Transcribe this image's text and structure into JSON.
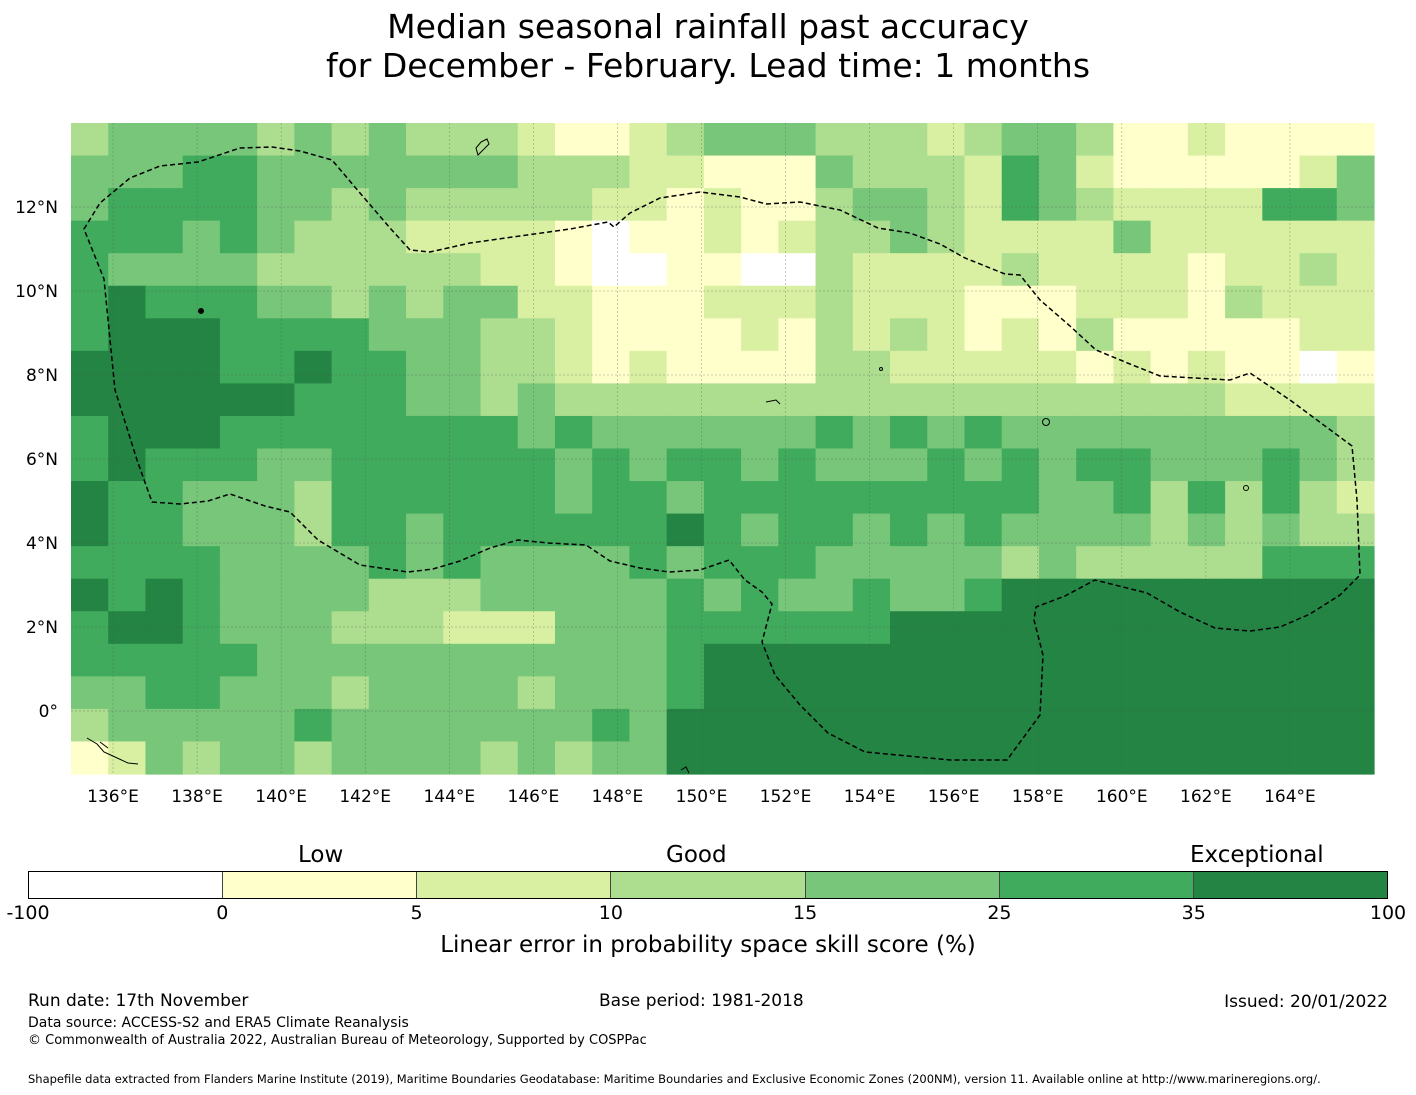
{
  "title": {
    "line1": "Median seasonal rainfall past accuracy",
    "line2": "for December - February. Lead time: 1 months"
  },
  "map": {
    "lon_range": [
      135,
      166
    ],
    "lat_range": [
      -1.5,
      14
    ],
    "x_ticks": [
      "136°E",
      "138°E",
      "140°E",
      "142°E",
      "144°E",
      "146°E",
      "148°E",
      "150°E",
      "152°E",
      "154°E",
      "156°E",
      "158°E",
      "160°E",
      "162°E",
      "164°E"
    ],
    "y_ticks": [
      "12°N",
      "10°N",
      "8°N",
      "6°N",
      "4°N",
      "2°N",
      "0°"
    ],
    "levels": [
      {
        "row_lat": 13.85,
        "cells": "34444343433321123444333234431121111"
      },
      {
        "row_lat": 13.4,
        "cells": "44455444444433322111433325421111124"
      },
      {
        "row_lat": 12.6,
        "cells": "45555443433333221211344325432222554"
      },
      {
        "row_lat": 11.8,
        "cells": "55545433322221011212334322224222222"
      },
      {
        "row_lat": 11.0,
        "cells": "54444333333221001100322223222212232"
      },
      {
        "row_lat": 10.2,
        "cells": "56555443434422111222322211122213222"
      },
      {
        "row_lat": 9.4,
        "cells": "56665555444332111121323212131111122"
      },
      {
        "row_lat": 8.6,
        "cells": "66665565544332121111332222212121101"
      },
      {
        "row_lat": 7.8,
        "cells": "66666655544343333333333333333332222"
      },
      {
        "row_lat": 7.0,
        "cells": "56665555555545444444545454444444443"
      },
      {
        "row_lat": 6.2,
        "cells": "56555445555554545545444545455444543"
      },
      {
        "row_lat": 5.4,
        "cells": "65544435555554554555555555445353532"
      },
      {
        "row_lat": 4.6,
        "cells": "65544435545555556545545454444343433"
      },
      {
        "row_lat": 3.8,
        "cells": "55554444545444454555444443433333555"
      },
      {
        "row_lat": 3.0,
        "cells": "65654444333444445454454456666666666"
      },
      {
        "row_lat": 2.2,
        "cells": "56654443332224445555556666666666666"
      },
      {
        "row_lat": 1.4,
        "cells": "55555444444444445666666666666666666"
      },
      {
        "row_lat": 0.6,
        "cells": "44554443444434445666666666666666666"
      },
      {
        "row_lat": -0.2,
        "cells": "34444454444444546666666666666666666"
      },
      {
        "row_lat": -1.0,
        "cells": "12434434444343446666666666666666666"
      }
    ]
  },
  "colorbar": {
    "categories": {
      "low": "Low",
      "good": "Good",
      "exceptional": "Exceptional"
    },
    "ticks": [
      "-100",
      "0",
      "5",
      "10",
      "15",
      "25",
      "35",
      "100"
    ],
    "colors": [
      "#ffffff",
      "#ffffcc",
      "#d9f0a3",
      "#addd8e",
      "#78c679",
      "#41ab5d",
      "#238443"
    ],
    "label": "Linear error in probability space skill score (%)"
  },
  "footer": {
    "run_date": "Run date: 17th November",
    "base_period": "Base period: 1981-2018",
    "issued": "Issued: 20/01/2022",
    "data_source": "Data source: ACCESS-S2 and ERA5 Climate Reanalysis",
    "copyright": "© Commonwealth of Australia 2022, Australian Bureau of Meteorology, Supported by COSPPac",
    "shapefile": "Shapefile data extracted from Flanders Marine Institute (2019), Maritime Boundaries Geodatabase: Maritime Boundaries and Exclusive Economic Zones (200NM), version 11. Available online at http://www.marineregions.org/."
  }
}
